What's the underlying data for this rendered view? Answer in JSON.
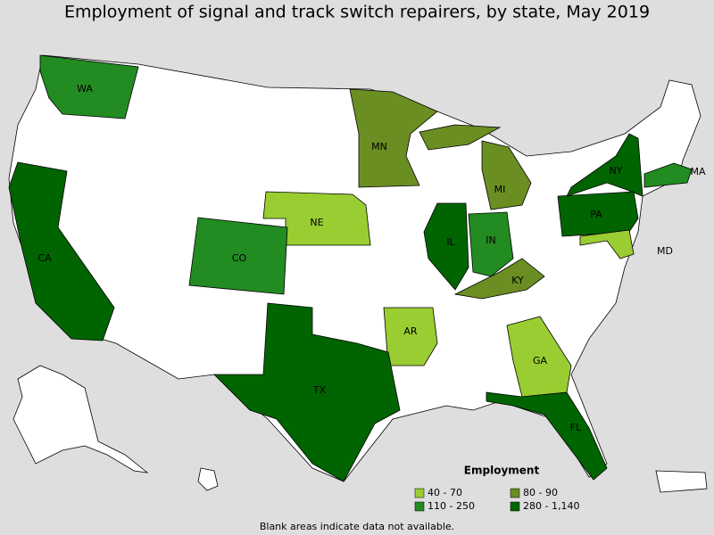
{
  "title": "Employment of signal and track switch repairers, by state, May 2019",
  "legend": {
    "title": "Employment",
    "items": [
      {
        "label": "40 - 70",
        "color": "#9acd32"
      },
      {
        "label": "80 - 90",
        "color": "#6b8e23"
      },
      {
        "label": "110 - 250",
        "color": "#228b22"
      },
      {
        "label": "280 - 1,140",
        "color": "#006400"
      }
    ]
  },
  "states": [
    {
      "label": "WA",
      "color": "#228b22"
    },
    {
      "label": "MN",
      "color": "#6b8e23"
    },
    {
      "label": "MI",
      "color": "#6b8e23"
    },
    {
      "label": "NE",
      "color": "#9acd32"
    },
    {
      "label": "CO",
      "color": "#228b22"
    },
    {
      "label": "CA",
      "color": "#006400"
    },
    {
      "label": "IL",
      "color": "#006400"
    },
    {
      "label": "IN",
      "color": "#228b22"
    },
    {
      "label": "KY",
      "color": "#6b8e23"
    },
    {
      "label": "NY",
      "color": "#006400"
    },
    {
      "label": "PA",
      "color": "#006400"
    },
    {
      "label": "MA",
      "color": "#228b22"
    },
    {
      "label": "MD",
      "color": "#9acd32"
    },
    {
      "label": "AR",
      "color": "#9acd32"
    },
    {
      "label": "GA",
      "color": "#9acd32"
    },
    {
      "label": "TX",
      "color": "#006400"
    },
    {
      "label": "FL",
      "color": "#006400"
    }
  ],
  "footnote": "Blank areas indicate data not available."
}
